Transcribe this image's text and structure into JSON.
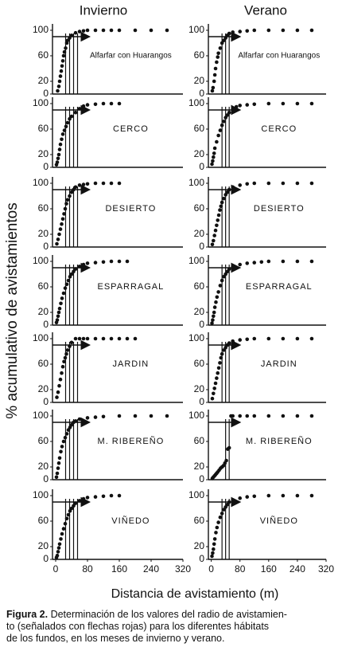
{
  "columns": [
    "Invierno",
    "Verano"
  ],
  "y_label": "% acumulativo de avistamientos",
  "x_label": "Distancia de avistamiento (m)",
  "caption": {
    "label": "Figura 2.",
    "lines": [
      " Determinación de los valores del radio de avistamien-",
      "to (señalados con flechas rojas) para los diferentes hábitats",
      "de los fundos, en los meses de invierno y verano."
    ]
  },
  "chart_data": [
    {
      "type": "scatter",
      "title": "Alfarfar con Huarangos",
      "xlim": [
        -8,
        320
      ],
      "ylim": [
        0,
        105
      ],
      "yticks": [
        0,
        20,
        60,
        100
      ],
      "color": "#111111",
      "arrow_y": 90,
      "arrow_end": 85,
      "vlines": [
        25,
        35,
        45,
        55
      ],
      "x": [
        5,
        8,
        10,
        12,
        14,
        16,
        18,
        20,
        22,
        25,
        28,
        30,
        35,
        40,
        50,
        60,
        70,
        80,
        100,
        120,
        140,
        160,
        200,
        240,
        280
      ],
      "y": [
        5,
        12,
        20,
        28,
        36,
        44,
        52,
        60,
        66,
        72,
        80,
        84,
        88,
        92,
        96,
        98,
        99,
        100,
        100,
        100,
        100,
        100,
        100,
        100,
        100
      ]
    },
    {
      "type": "scatter",
      "title": "Alfarfar con Huarangos",
      "xlim": [
        -8,
        320
      ],
      "ylim": [
        0,
        105
      ],
      "yticks": [
        0,
        20,
        60,
        100
      ],
      "color": "#111111",
      "arrow_y": 90,
      "arrow_end": 80,
      "vlines": [
        30,
        40,
        50
      ],
      "x": [
        3,
        5,
        8,
        10,
        12,
        15,
        18,
        20,
        25,
        30,
        35,
        40,
        45,
        50,
        60,
        80,
        100,
        120,
        160,
        200,
        240,
        280
      ],
      "y": [
        5,
        10,
        20,
        30,
        40,
        50,
        58,
        64,
        72,
        80,
        84,
        88,
        92,
        95,
        97,
        98,
        99,
        100,
        100,
        100,
        100,
        100
      ]
    },
    {
      "type": "scatter",
      "title": "CERCO",
      "xlim": [
        -8,
        320
      ],
      "ylim": [
        0,
        105
      ],
      "yticks": [
        0,
        20,
        60,
        100
      ],
      "color": "#111111",
      "arrow_y": 90,
      "arrow_end": 85,
      "vlines": [
        25,
        35,
        45,
        55
      ],
      "x": [
        2,
        4,
        6,
        8,
        10,
        12,
        15,
        18,
        22,
        26,
        30,
        35,
        40,
        50,
        60,
        70,
        80,
        100,
        120,
        140,
        160
      ],
      "y": [
        4,
        8,
        14,
        20,
        28,
        36,
        44,
        52,
        58,
        64,
        70,
        76,
        80,
        86,
        92,
        96,
        98,
        99,
        100,
        100,
        100
      ]
    },
    {
      "type": "scatter",
      "title": "CERCO",
      "xlim": [
        -8,
        320
      ],
      "ylim": [
        0,
        105
      ],
      "yticks": [
        0,
        20,
        60,
        100
      ],
      "color": "#111111",
      "arrow_y": 90,
      "arrow_end": 80,
      "vlines": [
        30,
        40,
        50
      ],
      "x": [
        2,
        4,
        6,
        8,
        10,
        15,
        20,
        25,
        30,
        35,
        40,
        45,
        50,
        60,
        70,
        80,
        100,
        120,
        160,
        200,
        240,
        280
      ],
      "y": [
        5,
        10,
        16,
        22,
        30,
        40,
        50,
        58,
        66,
        72,
        78,
        82,
        86,
        92,
        95,
        97,
        98,
        99,
        100,
        100,
        100,
        100
      ]
    },
    {
      "type": "scatter",
      "title": "DESIERTO",
      "xlim": [
        -8,
        320
      ],
      "ylim": [
        0,
        105
      ],
      "yticks": [
        0,
        20,
        60,
        100
      ],
      "color": "#111111",
      "arrow_y": 90,
      "arrow_end": 85,
      "vlines": [
        25,
        35,
        45,
        55
      ],
      "x": [
        3,
        6,
        9,
        12,
        15,
        18,
        21,
        24,
        27,
        30,
        35,
        40,
        45,
        50,
        60,
        70,
        80,
        100,
        120,
        140,
        160
      ],
      "y": [
        5,
        12,
        20,
        28,
        36,
        44,
        52,
        60,
        68,
        74,
        80,
        86,
        90,
        94,
        97,
        98,
        99,
        100,
        100,
        100,
        100
      ]
    },
    {
      "type": "scatter",
      "title": "DESIERTO",
      "xlim": [
        -8,
        320
      ],
      "ylim": [
        0,
        105
      ],
      "yticks": [
        0,
        20,
        60,
        100
      ],
      "color": "#111111",
      "arrow_y": 90,
      "arrow_end": 80,
      "vlines": [
        30,
        40,
        50
      ],
      "x": [
        3,
        6,
        9,
        12,
        15,
        18,
        21,
        24,
        27,
        30,
        35,
        40,
        45,
        50,
        60,
        80,
        100,
        120,
        160,
        200,
        240,
        280
      ],
      "y": [
        4,
        10,
        18,
        26,
        34,
        42,
        50,
        58,
        64,
        70,
        76,
        82,
        86,
        90,
        94,
        97,
        99,
        100,
        100,
        100,
        100,
        100
      ]
    },
    {
      "type": "scatter",
      "title": "ESPARRAGAL",
      "xlim": [
        -8,
        320
      ],
      "ylim": [
        0,
        105
      ],
      "yticks": [
        0,
        20,
        60,
        100
      ],
      "color": "#111111",
      "arrow_y": 90,
      "arrow_end": 85,
      "vlines": [
        25,
        35,
        45,
        55
      ],
      "x": [
        2,
        4,
        6,
        8,
        10,
        13,
        16,
        20,
        24,
        28,
        32,
        36,
        40,
        45,
        50,
        60,
        70,
        80,
        100,
        120,
        140,
        160,
        180
      ],
      "y": [
        4,
        8,
        14,
        20,
        26,
        34,
        42,
        50,
        58,
        64,
        70,
        76,
        80,
        84,
        88,
        92,
        95,
        97,
        98,
        99,
        100,
        100,
        100
      ]
    },
    {
      "type": "scatter",
      "title": "ESPARRAGAL",
      "xlim": [
        -8,
        320
      ],
      "ylim": [
        0,
        105
      ],
      "yticks": [
        0,
        20,
        60,
        100
      ],
      "color": "#111111",
      "arrow_y": 90,
      "arrow_end": 80,
      "vlines": [
        30,
        40,
        50
      ],
      "x": [
        2,
        4,
        6,
        8,
        10,
        13,
        16,
        20,
        25,
        30,
        35,
        40,
        45,
        50,
        60,
        80,
        100,
        120,
        140,
        160,
        200,
        240,
        280
      ],
      "y": [
        3,
        8,
        14,
        20,
        28,
        36,
        44,
        52,
        62,
        70,
        76,
        80,
        84,
        88,
        92,
        95,
        97,
        98,
        99,
        100,
        100,
        100,
        100
      ]
    },
    {
      "type": "scatter",
      "title": "JARDIN",
      "xlim": [
        -8,
        320
      ],
      "ylim": [
        0,
        105
      ],
      "yticks": [
        0,
        20,
        60,
        100
      ],
      "color": "#111111",
      "arrow_y": 90,
      "arrow_end": 85,
      "vlines": [
        25,
        35,
        45,
        55
      ],
      "x": [
        3,
        6,
        9,
        12,
        15,
        18,
        21,
        24,
        27,
        30,
        35,
        40,
        50,
        60,
        70,
        80,
        100,
        120,
        140,
        160,
        180,
        200
      ],
      "y": [
        8,
        16,
        26,
        36,
        46,
        56,
        64,
        70,
        76,
        82,
        88,
        94,
        100,
        100,
        100,
        100,
        100,
        100,
        100,
        100,
        100,
        100
      ]
    },
    {
      "type": "scatter",
      "title": "JARDIN",
      "xlim": [
        -8,
        320
      ],
      "ylim": [
        0,
        105
      ],
      "yticks": [
        0,
        20,
        60,
        100
      ],
      "color": "#111111",
      "arrow_y": 90,
      "arrow_end": 80,
      "vlines": [
        30,
        40,
        50
      ],
      "x": [
        3,
        6,
        9,
        12,
        15,
        18,
        21,
        24,
        27,
        30,
        35,
        40,
        45,
        50,
        60,
        80,
        100,
        120,
        160,
        200,
        240,
        280
      ],
      "y": [
        6,
        14,
        22,
        30,
        38,
        46,
        54,
        62,
        70,
        76,
        82,
        86,
        90,
        93,
        96,
        98,
        99,
        100,
        100,
        100,
        100,
        100
      ]
    },
    {
      "type": "scatter",
      "title": "M. RIBEREÑO",
      "xlim": [
        -8,
        320
      ],
      "ylim": [
        0,
        105
      ],
      "yticks": [
        0,
        20,
        60,
        100
      ],
      "color": "#111111",
      "arrow_y": 90,
      "arrow_end": 85,
      "vlines": [
        25,
        35,
        45,
        55
      ],
      "x": [
        2,
        4,
        6,
        8,
        10,
        13,
        16,
        20,
        24,
        28,
        32,
        36,
        40,
        45,
        50,
        60,
        80,
        100,
        120,
        160,
        200,
        240,
        280
      ],
      "y": [
        4,
        10,
        18,
        26,
        34,
        44,
        52,
        60,
        66,
        72,
        78,
        82,
        86,
        90,
        92,
        95,
        97,
        98,
        99,
        100,
        100,
        100,
        100
      ]
    },
    {
      "type": "scatter",
      "title": "M. RIBEREÑO",
      "xlim": [
        -8,
        320
      ],
      "ylim": [
        0,
        105
      ],
      "yticks": [
        0,
        20,
        60,
        100
      ],
      "color": "#111111",
      "arrow_y": 90,
      "arrow_end": 80,
      "vlines": [
        40,
        50
      ],
      "x": [
        3,
        6,
        9,
        12,
        15,
        18,
        22,
        26,
        30,
        34,
        38,
        42,
        46,
        50,
        55,
        60,
        80,
        100,
        120,
        160,
        200,
        240,
        280
      ],
      "y": [
        2,
        4,
        6,
        8,
        10,
        12,
        15,
        18,
        20,
        22,
        26,
        30,
        48,
        50,
        100,
        100,
        100,
        100,
        100,
        100,
        100,
        100,
        100
      ]
    },
    {
      "type": "scatter",
      "title": "VIÑEDO",
      "xlim": [
        -8,
        320
      ],
      "ylim": [
        0,
        105
      ],
      "yticks": [
        0,
        20,
        60,
        100
      ],
      "xticks": [
        0,
        80,
        160,
        240,
        320
      ],
      "color": "#111111",
      "arrow_y": 90,
      "arrow_end": 85,
      "vlines": [
        25,
        35,
        45,
        55
      ],
      "x": [
        2,
        4,
        6,
        8,
        10,
        13,
        16,
        20,
        24,
        28,
        32,
        36,
        40,
        45,
        50,
        60,
        70,
        80,
        100,
        120,
        140,
        160
      ],
      "y": [
        3,
        6,
        12,
        18,
        24,
        32,
        40,
        48,
        56,
        64,
        70,
        76,
        80,
        84,
        88,
        92,
        95,
        97,
        98,
        99,
        100,
        100
      ]
    },
    {
      "type": "scatter",
      "title": "VIÑEDO",
      "xlim": [
        -8,
        320
      ],
      "ylim": [
        0,
        105
      ],
      "yticks": [
        0,
        20,
        60,
        100
      ],
      "xticks": [
        0,
        80,
        160,
        240,
        320
      ],
      "color": "#111111",
      "arrow_y": 90,
      "arrow_end": 80,
      "vlines": [
        30,
        40,
        50
      ],
      "x": [
        2,
        4,
        6,
        8,
        10,
        13,
        16,
        20,
        25,
        30,
        35,
        40,
        45,
        50,
        60,
        80,
        100,
        120,
        160,
        200,
        240,
        280
      ],
      "y": [
        5,
        10,
        16,
        24,
        32,
        42,
        50,
        58,
        66,
        72,
        78,
        82,
        86,
        90,
        93,
        96,
        98,
        99,
        100,
        100,
        100,
        100
      ]
    }
  ]
}
